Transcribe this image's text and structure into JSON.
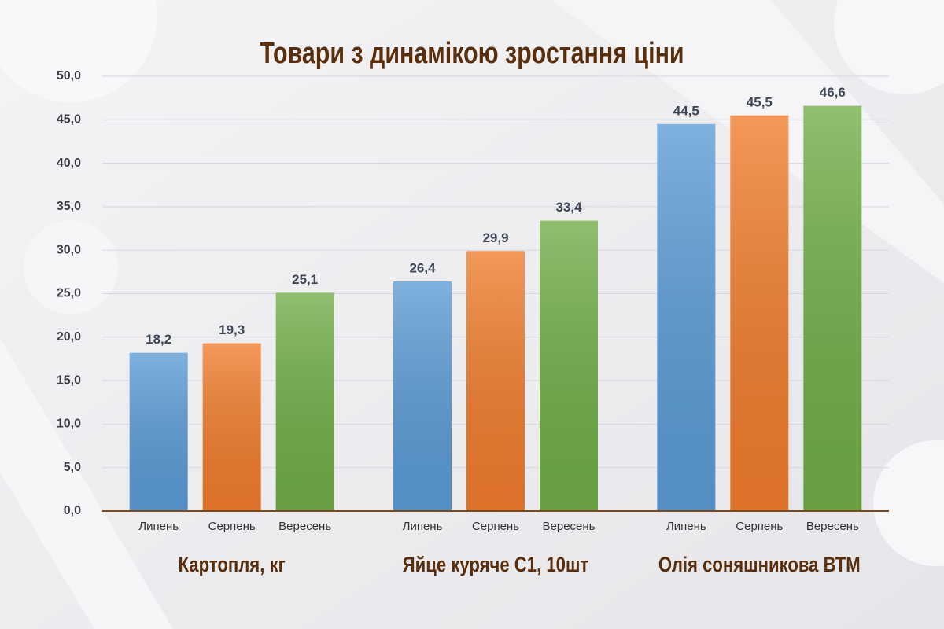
{
  "chart_data": {
    "type": "bar",
    "title": "Товари з динамікою зростання ціни",
    "categories": [
      "Картопля, кг",
      "Яйце куряче С1, 10шт",
      "Олія соняшникова ВТМ"
    ],
    "series": [
      {
        "name": "Липень",
        "color": "#5b9bd5",
        "values": [
          18.2,
          26.4,
          44.5
        ],
        "value_labels": [
          "18,2",
          "26,4",
          "44,5"
        ]
      },
      {
        "name": "Серпень",
        "color": "#f07c2c",
        "values": [
          19.3,
          29.9,
          45.5
        ],
        "value_labels": [
          "19,3",
          "29,9",
          "45,5"
        ]
      },
      {
        "name": "Вересень",
        "color": "#70ad47",
        "values": [
          25.1,
          33.4,
          46.6
        ],
        "value_labels": [
          "25,1",
          "33,4",
          "46,6"
        ]
      }
    ],
    "ylim": [
      0,
      50
    ],
    "yticks": [
      {
        "value": 0,
        "label": "0,0"
      },
      {
        "value": 5,
        "label": "5,0"
      },
      {
        "value": 10,
        "label": "10,0"
      },
      {
        "value": 15,
        "label": "15,0"
      },
      {
        "value": 20,
        "label": "20,0"
      },
      {
        "value": 25,
        "label": "25,0"
      },
      {
        "value": 30,
        "label": "30,0"
      },
      {
        "value": 35,
        "label": "35,0"
      },
      {
        "value": 40,
        "label": "40,0"
      },
      {
        "value": 45,
        "label": "45,0"
      },
      {
        "value": 50,
        "label": "50,0"
      }
    ],
    "grid": true
  }
}
